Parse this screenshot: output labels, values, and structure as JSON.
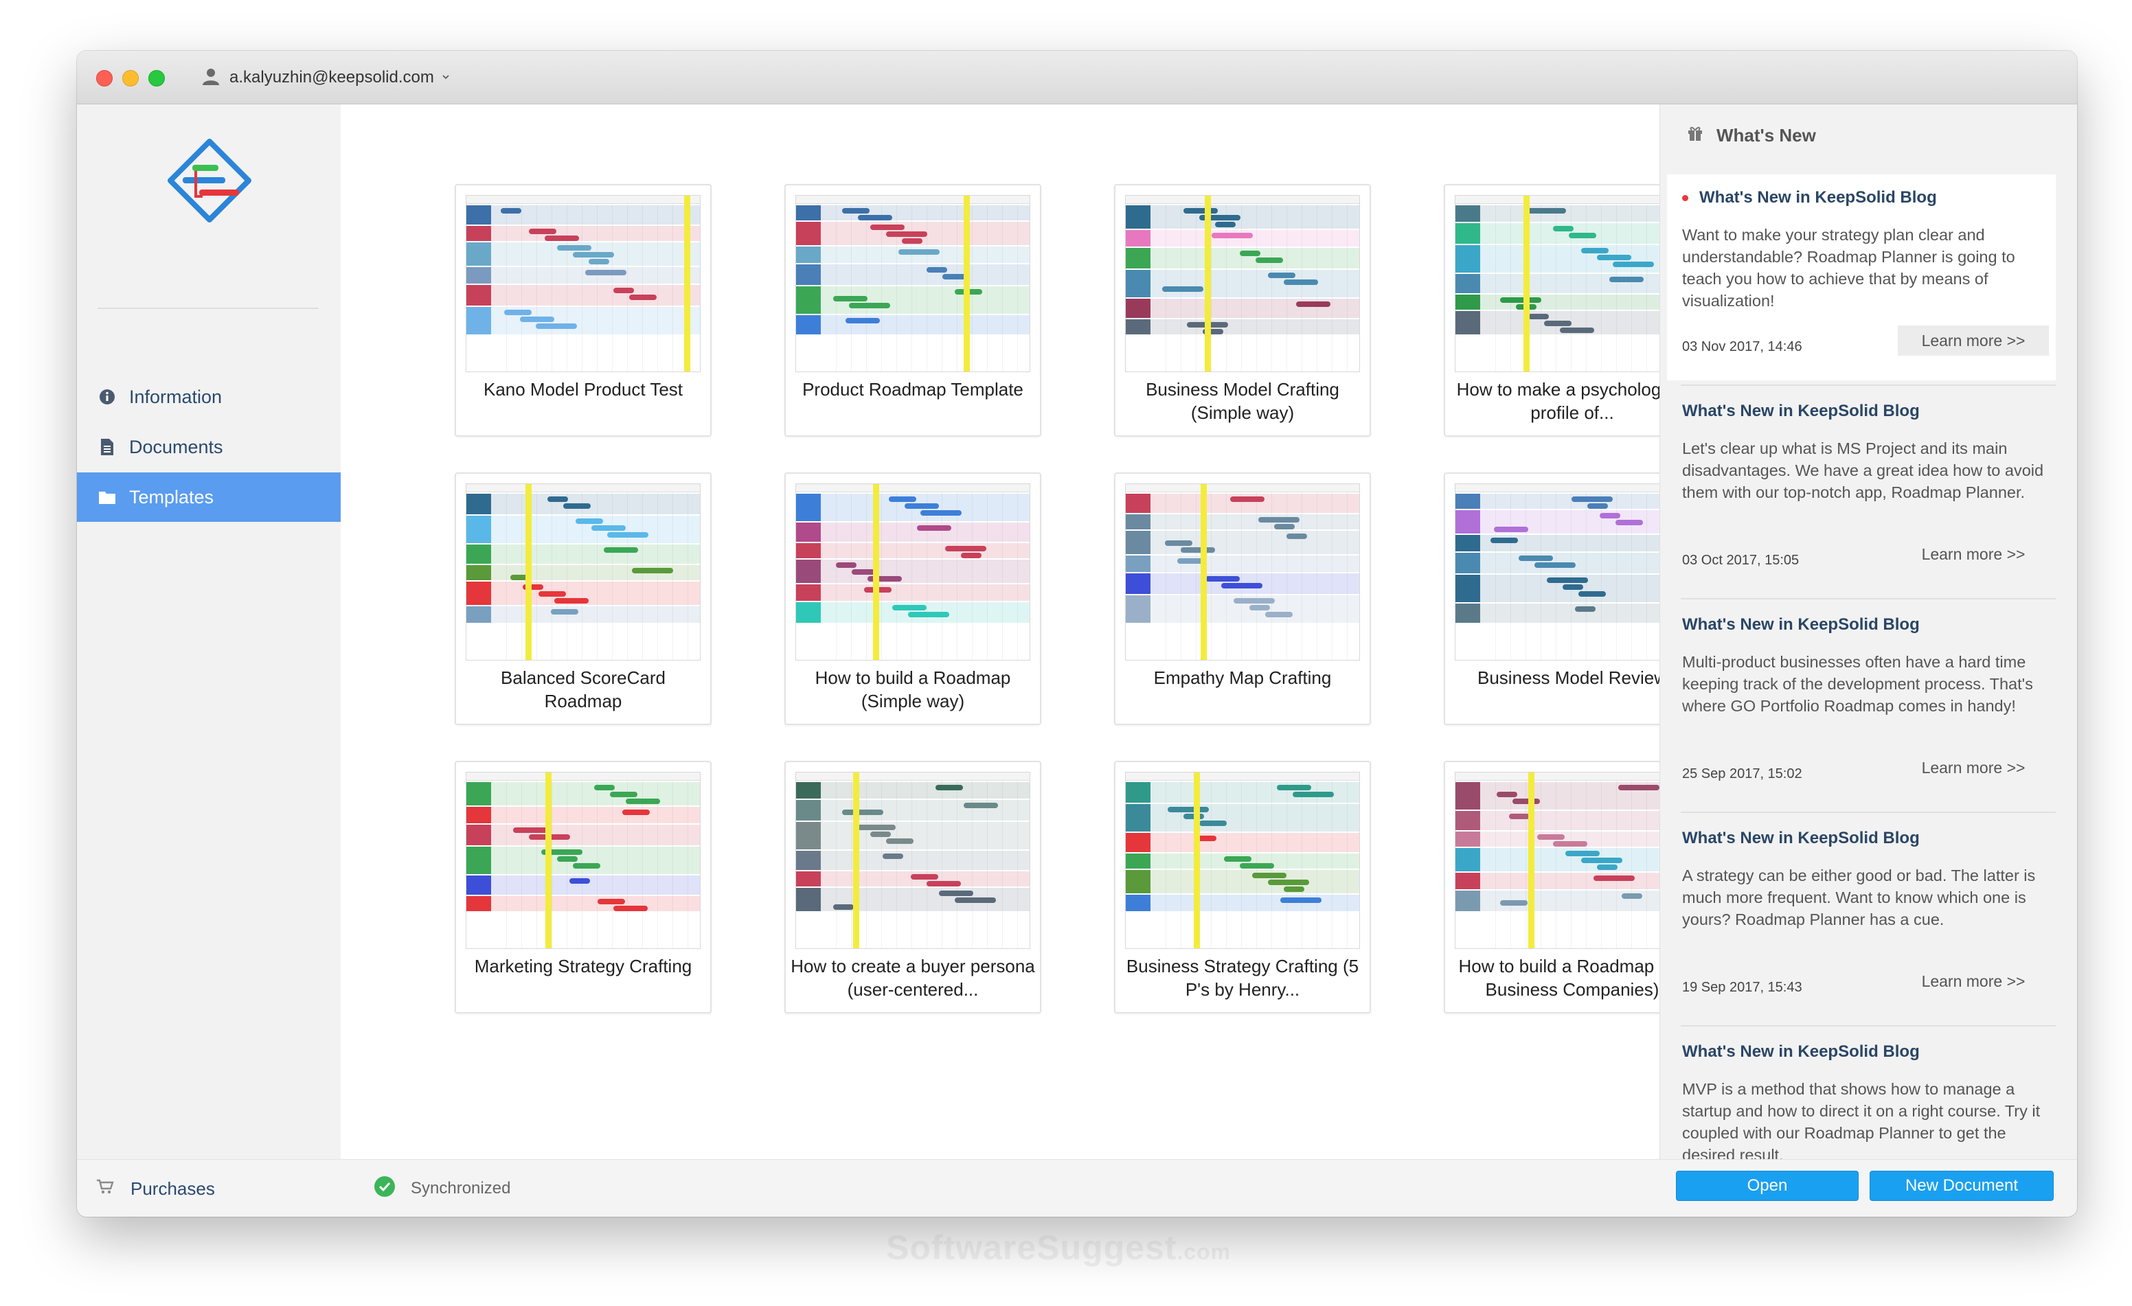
{
  "account": {
    "email": "a.kalyuzhin@keepsolid.com",
    "icon": "user-icon"
  },
  "sidebar": {
    "items": [
      {
        "label": "Information",
        "icon": "info-icon"
      },
      {
        "label": "Documents",
        "icon": "document-icon"
      },
      {
        "label": "Templates",
        "icon": "folder-icon",
        "active": true
      }
    ],
    "accent": "#5a9cf0"
  },
  "templates": [
    {
      "title": "Kano Model Product Test"
    },
    {
      "title": "Product Roadmap Template"
    },
    {
      "title": "Business Model Crafting (Simple way)"
    },
    {
      "title": "How to make a psychological profile of..."
    },
    {
      "title": "Balanced ScoreCard Roadmap"
    },
    {
      "title": "How to build a Roadmap (Simple way)"
    },
    {
      "title": "Empathy Map Crafting"
    },
    {
      "title": "Business Model Review"
    },
    {
      "title": "Marketing Strategy Crafting"
    },
    {
      "title": "How to create a buyer persona (user-centered..."
    },
    {
      "title": "Business Strategy Crafting (5 P's by Henry..."
    },
    {
      "title": "How to build a Roadmap (for Business Companies)"
    }
  ],
  "news": {
    "heading": "What's New",
    "items": [
      {
        "title": "What's New in KeepSolid Blog",
        "unread": true,
        "text": "Want to make your strategy plan clear and understandable? Roadmap Planner is going to teach you how to achieve that by means of visualization!",
        "date": "03 Nov 2017, 14:46",
        "more": "Learn more >>"
      },
      {
        "title": "What's New in KeepSolid Blog",
        "unread": false,
        "text": "Let's clear up what is MS Project and its main disadvantages. We have a great idea how to avoid them with our top-notch app, Roadmap Planner.",
        "date": "03 Oct 2017, 15:05",
        "more": "Learn more >>"
      },
      {
        "title": "What's New in KeepSolid Blog",
        "unread": false,
        "text": "Multi-product businesses often have a hard time keeping track of the development process. That's where GO Portfolio Roadmap comes in handy!",
        "date": "25 Sep 2017, 15:02",
        "more": "Learn more >>"
      },
      {
        "title": "What's New in KeepSolid Blog",
        "unread": false,
        "text": "A strategy can be either good or bad. The latter is much more frequent. Want to know which one is yours? Roadmap Planner has a cue.",
        "date": "19 Sep 2017, 15:43",
        "more": "Learn more >>"
      },
      {
        "title": "What's New in KeepSolid Blog",
        "unread": false,
        "text": "MVP is a method that shows how to manage a startup and how to direct it on a right course. Try it coupled with our Roadmap Planner to get the desired result.",
        "date": "",
        "more": ""
      }
    ]
  },
  "footer": {
    "purchases": "Purchases",
    "sync_status": "Synchronized",
    "open_label": "Open",
    "new_label": "New Document",
    "button_color": "#1aa0f0"
  },
  "watermark": {
    "main": "SoftwareSuggest",
    "suffix": ".com"
  }
}
